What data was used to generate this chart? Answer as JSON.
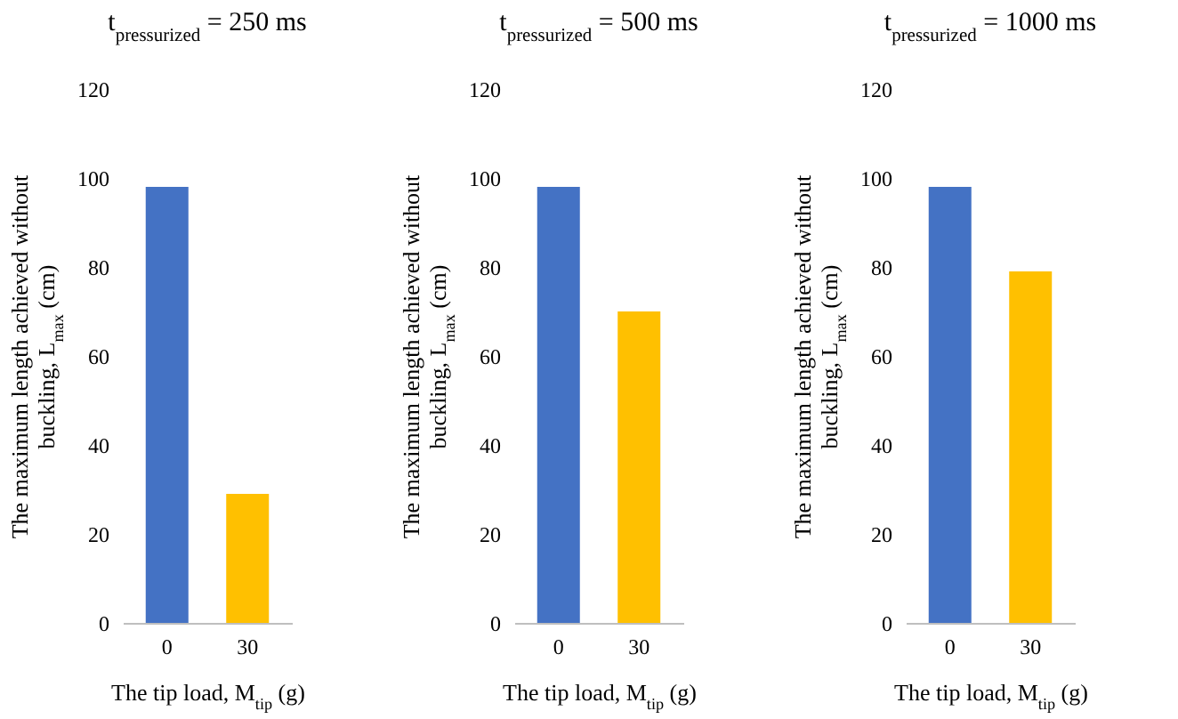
{
  "chart_data": [
    {
      "type": "bar",
      "title": "t$_{pressurized}$ = 250 ms",
      "xlabel": "The tip load, M$_{tip}$ (g)",
      "ylabel": "The maximum length achieved without buckling, L$_{max}$ (cm)",
      "categories": [
        "0",
        "30"
      ],
      "values": [
        98,
        29
      ],
      "colors": [
        "#4472c4",
        "#ffc000"
      ],
      "ylim": [
        0,
        120
      ],
      "yticks": [
        0,
        20,
        40,
        60,
        80,
        100,
        120
      ],
      "grid": false
    },
    {
      "type": "bar",
      "title": "t$_{pressurized}$ = 500 ms",
      "xlabel": "The tip load, M$_{tip}$ (g)",
      "ylabel": "The maximum length achieved without buckling, L$_{max}$ (cm)",
      "categories": [
        "0",
        "30"
      ],
      "values": [
        98,
        70
      ],
      "colors": [
        "#4472c4",
        "#ffc000"
      ],
      "ylim": [
        0,
        120
      ],
      "yticks": [
        0,
        20,
        40,
        60,
        80,
        100,
        120
      ],
      "grid": false
    },
    {
      "type": "bar",
      "title": "t$_{pressurized}$ = 1000 ms",
      "xlabel": "The tip load, M$_{tip}$ (g)",
      "ylabel": "The maximum length achieved without buckling, L$_{max}$ (cm)",
      "categories": [
        "0",
        "30"
      ],
      "values": [
        98,
        79
      ],
      "colors": [
        "#4472c4",
        "#ffc000"
      ],
      "ylim": [
        0,
        120
      ],
      "yticks": [
        0,
        20,
        40,
        60,
        80,
        100,
        120
      ],
      "grid": false
    }
  ]
}
